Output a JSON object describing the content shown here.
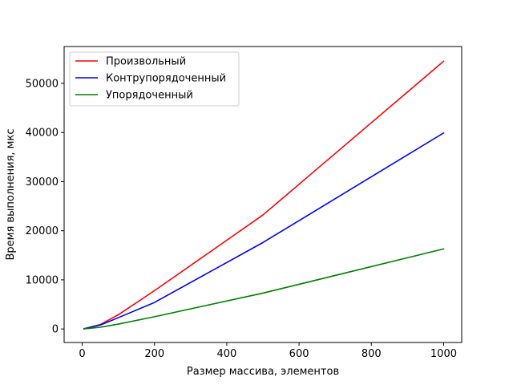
{
  "chart_data": {
    "type": "line",
    "title": "",
    "xlabel": "Размер массива, элементов",
    "ylabel": "Время выполнения, мкс",
    "xlim": [
      -50,
      1050
    ],
    "ylim": [
      -2750,
      57500
    ],
    "xticks": [
      0,
      200,
      400,
      600,
      800,
      1000
    ],
    "yticks": [
      0,
      10000,
      20000,
      30000,
      40000,
      50000
    ],
    "grid": false,
    "legend_position": "top-left",
    "series": [
      {
        "name": "Произвольный",
        "color": "#ff0000",
        "x": [
          5,
          10,
          50,
          100,
          200,
          500,
          1000
        ],
        "y": [
          60,
          150,
          900,
          2900,
          7800,
          23200,
          54500
        ]
      },
      {
        "name": "Контрупорядоченный",
        "color": "#0000ff",
        "x": [
          5,
          10,
          50,
          100,
          200,
          500,
          1000
        ],
        "y": [
          50,
          120,
          800,
          2300,
          5400,
          17600,
          39900
        ]
      },
      {
        "name": "Упорядоченный",
        "color": "#008000",
        "x": [
          5,
          10,
          50,
          100,
          200,
          500,
          1000
        ],
        "y": [
          30,
          60,
          350,
          1000,
          2500,
          7300,
          16300
        ]
      }
    ]
  }
}
